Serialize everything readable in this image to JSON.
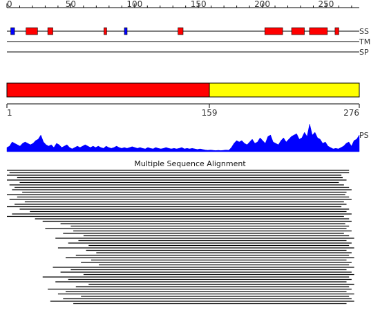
{
  "ruler": {
    "min": 0,
    "max": 276,
    "ticks": [
      0,
      50,
      100,
      150,
      200,
      250
    ]
  },
  "tracks": {
    "ss": {
      "label": "SS",
      "helix_color": "#ff0000",
      "strand_color": "#0000ff",
      "elements": [
        {
          "type": "strand",
          "start": 3,
          "end": 6
        },
        {
          "type": "helix",
          "start": 15,
          "end": 24
        },
        {
          "type": "helix",
          "start": 32,
          "end": 36
        },
        {
          "type": "helix",
          "start": 76,
          "end": 78
        },
        {
          "type": "strand",
          "start": 92,
          "end": 94
        },
        {
          "type": "helix",
          "start": 134,
          "end": 138
        },
        {
          "type": "helix",
          "start": 202,
          "end": 216
        },
        {
          "type": "helix",
          "start": 223,
          "end": 233
        },
        {
          "type": "helix",
          "start": 237,
          "end": 251
        },
        {
          "type": "helix",
          "start": 257,
          "end": 260
        }
      ]
    },
    "tm": {
      "label": "TM"
    },
    "sp": {
      "label": "SP"
    }
  },
  "domains": {
    "segments": [
      {
        "start": 1,
        "end": 159,
        "color": "#ff0000"
      },
      {
        "start": 159,
        "end": 276,
        "color": "#ffff00"
      }
    ],
    "tick_labels": [
      "1",
      "159",
      "276"
    ]
  },
  "ps": {
    "label": "PS",
    "color": "#0000ff",
    "values": [
      0.15,
      0.2,
      0.35,
      0.3,
      0.25,
      0.2,
      0.3,
      0.35,
      0.3,
      0.25,
      0.3,
      0.4,
      0.45,
      0.6,
      0.35,
      0.25,
      0.2,
      0.25,
      0.15,
      0.3,
      0.25,
      0.15,
      0.2,
      0.25,
      0.15,
      0.1,
      0.15,
      0.2,
      0.15,
      0.2,
      0.25,
      0.2,
      0.15,
      0.2,
      0.15,
      0.2,
      0.15,
      0.12,
      0.2,
      0.15,
      0.12,
      0.15,
      0.2,
      0.15,
      0.12,
      0.15,
      0.12,
      0.15,
      0.18,
      0.15,
      0.12,
      0.15,
      0.12,
      0.1,
      0.15,
      0.12,
      0.1,
      0.15,
      0.12,
      0.1,
      0.12,
      0.15,
      0.12,
      0.1,
      0.12,
      0.1,
      0.12,
      0.15,
      0.1,
      0.12,
      0.1,
      0.12,
      0.1,
      0.08,
      0.1,
      0.08,
      0.06,
      0.05,
      0.06,
      0.05,
      0.04,
      0.05,
      0.04,
      0.05,
      0.06,
      0.05,
      0.15,
      0.3,
      0.4,
      0.35,
      0.4,
      0.3,
      0.25,
      0.35,
      0.45,
      0.3,
      0.35,
      0.5,
      0.4,
      0.3,
      0.55,
      0.6,
      0.35,
      0.3,
      0.25,
      0.4,
      0.5,
      0.35,
      0.45,
      0.55,
      0.6,
      0.65,
      0.45,
      0.5,
      0.7,
      0.55,
      1.0,
      0.6,
      0.7,
      0.5,
      0.45,
      0.3,
      0.35,
      0.2,
      0.15,
      0.1,
      0.12,
      0.1,
      0.15,
      0.2,
      0.3,
      0.35,
      0.2,
      0.4,
      0.45,
      0.6
    ]
  },
  "msa": {
    "title": "Multiple Sequence Alignment",
    "color": "#000000",
    "rows": [
      {
        "start": 0,
        "end": 268
      },
      {
        "start": 2,
        "end": 268
      },
      {
        "start": 0,
        "end": 262
      },
      {
        "start": 8,
        "end": 263
      },
      {
        "start": 0,
        "end": 266
      },
      {
        "start": 10,
        "end": 260
      },
      {
        "start": 2,
        "end": 264
      },
      {
        "start": 6,
        "end": 268
      },
      {
        "start": 4,
        "end": 270
      },
      {
        "start": 12,
        "end": 266
      },
      {
        "start": 0,
        "end": 265
      },
      {
        "start": 8,
        "end": 268
      },
      {
        "start": 2,
        "end": 270
      },
      {
        "start": 14,
        "end": 264
      },
      {
        "start": 6,
        "end": 266
      },
      {
        "start": 0,
        "end": 262
      },
      {
        "start": 10,
        "end": 268
      },
      {
        "start": 18,
        "end": 266
      },
      {
        "start": 4,
        "end": 270
      },
      {
        "start": 0,
        "end": 264
      },
      {
        "start": 22,
        "end": 268
      },
      {
        "start": 28,
        "end": 270
      },
      {
        "start": 42,
        "end": 265
      },
      {
        "start": 50,
        "end": 268
      },
      {
        "start": 30,
        "end": 266
      },
      {
        "start": 52,
        "end": 270
      },
      {
        "start": 44,
        "end": 264
      },
      {
        "start": 60,
        "end": 268
      },
      {
        "start": 38,
        "end": 272
      },
      {
        "start": 56,
        "end": 266
      },
      {
        "start": 48,
        "end": 270
      },
      {
        "start": 64,
        "end": 268
      },
      {
        "start": 40,
        "end": 272
      },
      {
        "start": 62,
        "end": 266
      },
      {
        "start": 70,
        "end": 270
      },
      {
        "start": 54,
        "end": 268
      },
      {
        "start": 46,
        "end": 272
      },
      {
        "start": 66,
        "end": 266
      },
      {
        "start": 58,
        "end": 270
      },
      {
        "start": 72,
        "end": 268
      },
      {
        "start": 36,
        "end": 272
      },
      {
        "start": 50,
        "end": 266
      },
      {
        "start": 42,
        "end": 270
      },
      {
        "start": 60,
        "end": 272
      },
      {
        "start": 28,
        "end": 268
      },
      {
        "start": 48,
        "end": 270
      },
      {
        "start": 38,
        "end": 266
      },
      {
        "start": 64,
        "end": 272
      },
      {
        "start": 54,
        "end": 268
      },
      {
        "start": 32,
        "end": 270
      },
      {
        "start": 46,
        "end": 266
      },
      {
        "start": 40,
        "end": 272
      },
      {
        "start": 58,
        "end": 268
      },
      {
        "start": 44,
        "end": 270
      },
      {
        "start": 34,
        "end": 272
      },
      {
        "start": 52,
        "end": 266
      }
    ]
  }
}
